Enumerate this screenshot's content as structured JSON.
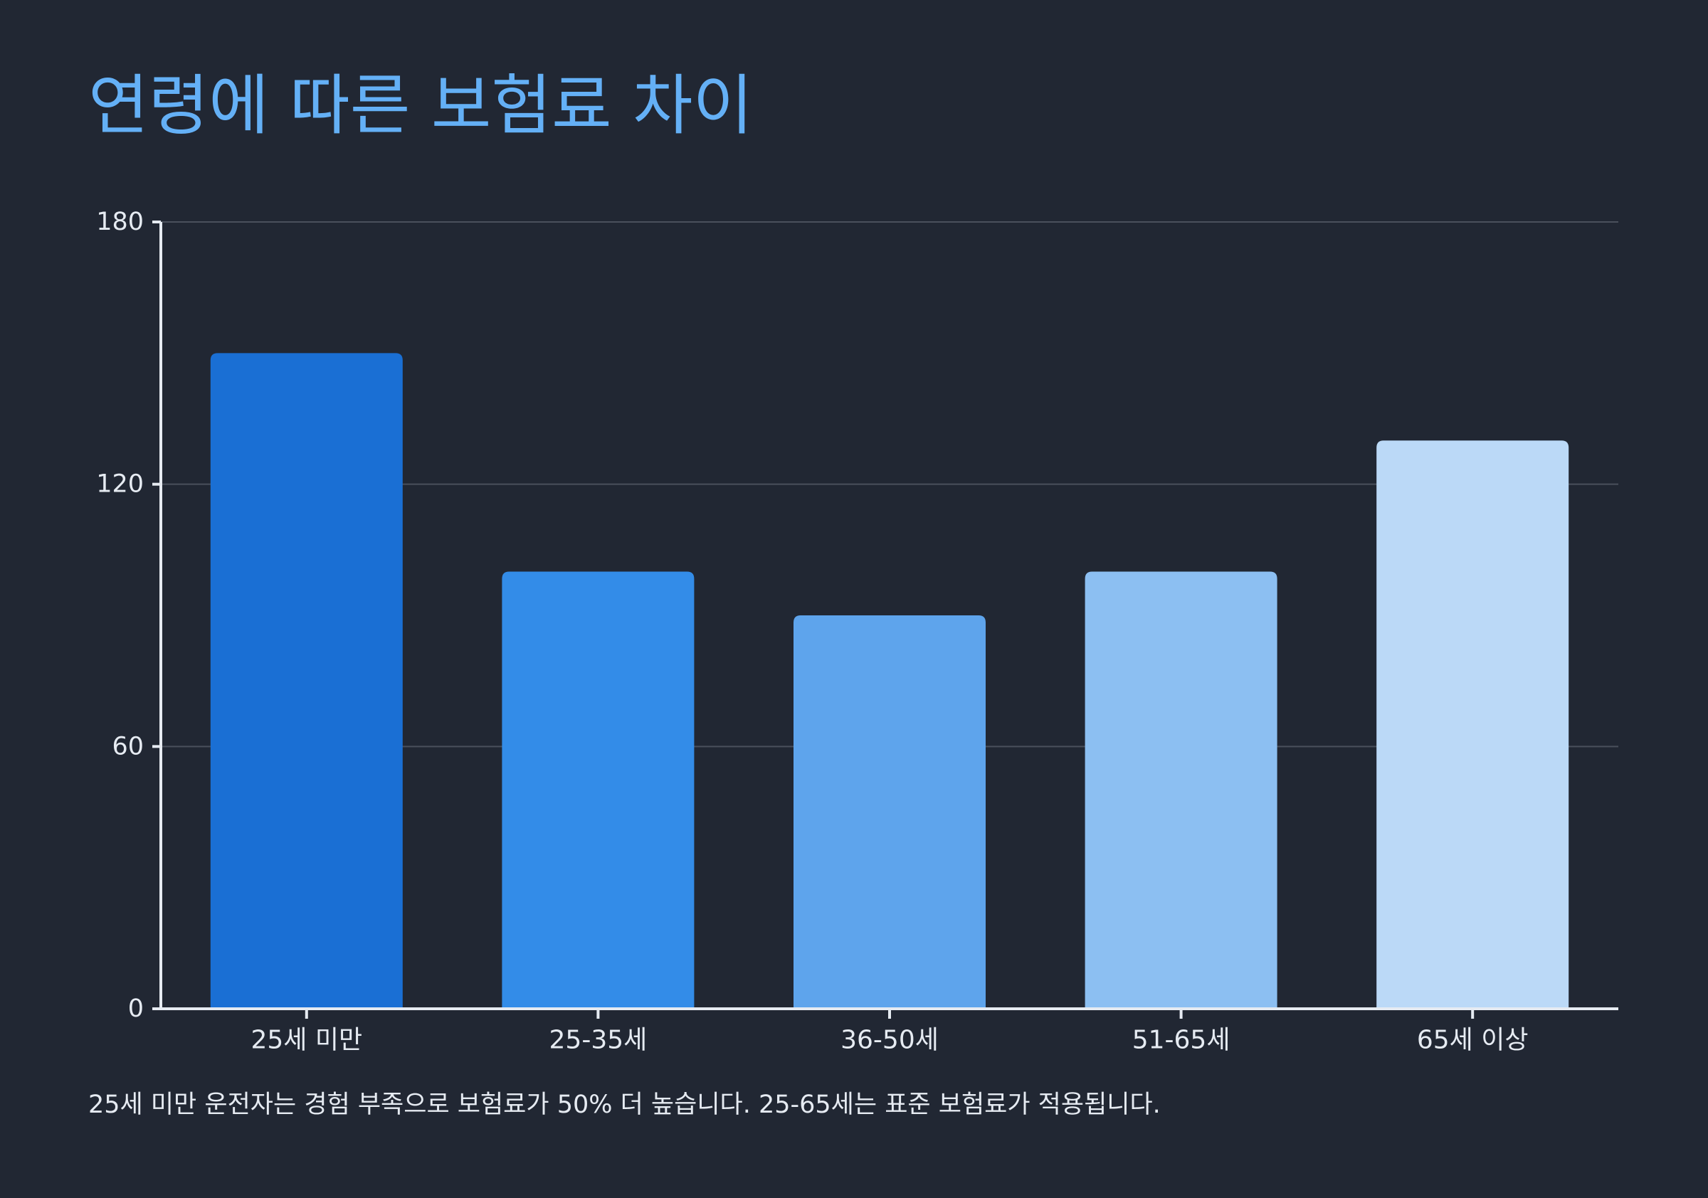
{
  "chart_data": {
    "type": "bar",
    "title": "연령에 따른 보험료 차이",
    "categories": [
      "25세 미만",
      "25-35세",
      "36-50세",
      "51-65세",
      "65세 이상"
    ],
    "values": [
      150,
      100,
      90,
      100,
      130
    ],
    "ylim": [
      0,
      180
    ],
    "yticks": [
      0,
      60,
      120,
      180
    ],
    "xlabel": "",
    "ylabel": "",
    "grid": true,
    "legend": "none",
    "bar_colors": [
      "#1a6fd4",
      "#338ce8",
      "#5ea4ec",
      "#8cbff2",
      "#bbd9f7"
    ]
  },
  "caption": "25세 미만 운전자는 경험 부족으로 보험료가 50% 더 높습니다. 25-65세는 표준 보험료가 적용됩니다.",
  "colors": {
    "background": "#212733",
    "title": "#64b0f6",
    "axis": "#e6ebf2",
    "grid": "#4a505c",
    "tick_text": "#e6ebf2"
  }
}
